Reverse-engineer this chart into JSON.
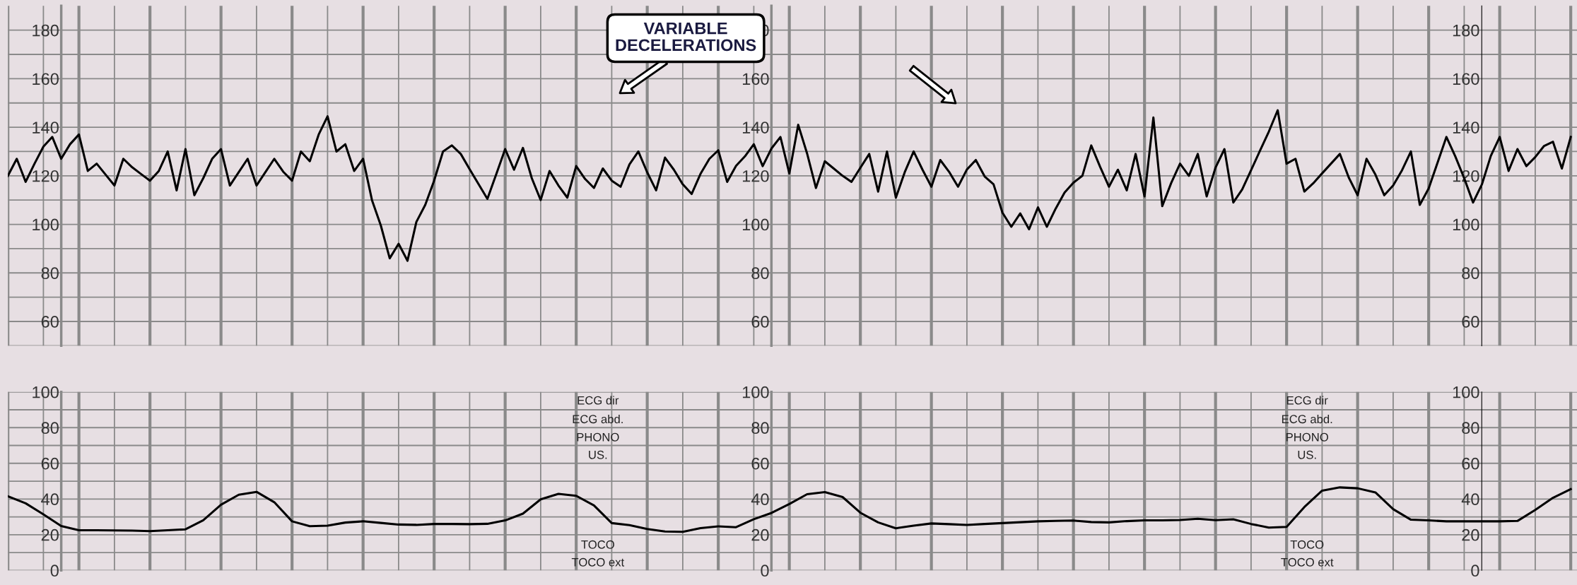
{
  "chart_data": [
    {
      "type": "line",
      "annotations": [
        "VARIABLE\nDECELERATIONS"
      ],
      "tick_labels": "y",
      "grid": true,
      "ylim": [
        50,
        190
      ],
      "y2lim": [
        50,
        190
      ],
      "y3lim": [
        50,
        190
      ],
      "y3ticks": [
        {
          "value": 50,
          "label": null
        },
        60,
        {
          "value": 70,
          "label": null
        },
        80,
        {
          "value": 90,
          "label": null
        },
        100,
        {
          "value": 110,
          "label": null
        },
        120,
        {
          "value": 130,
          "label": null
        },
        140,
        {
          "value": 150,
          "label": null
        },
        160,
        {
          "value": 170,
          "label": null
        },
        180
      ],
      "y2ticks": [
        {
          "value": 50,
          "label": null
        },
        60,
        {
          "value": 70,
          "label": null
        },
        80,
        {
          "value": 90,
          "label": null
        },
        100,
        {
          "value": 110,
          "label": null
        },
        120,
        {
          "value": 130,
          "label": null
        },
        140,
        {
          "value": 150,
          "label": null
        },
        160,
        {
          "value": 170,
          "label": null
        },
        180
      ],
      "yticks": [
        {
          "value": 50,
          "label": null
        },
        60,
        {
          "value": 70,
          "label": null
        },
        80,
        {
          "value": 90,
          "label": null
        },
        100,
        {
          "value": 110,
          "label": null
        },
        120,
        {
          "value": 130,
          "label": null
        },
        140,
        {
          "value": 150,
          "label": null
        },
        160,
        {
          "value": 170,
          "label": null
        },
        180
      ],
      "categories": [
        null,
        null,
        null,
        null,
        null,
        null,
        null,
        null,
        null,
        null,
        null,
        null,
        null,
        null,
        null,
        null,
        null,
        null,
        null,
        null,
        null,
        null,
        null,
        null,
        null,
        null,
        null,
        null,
        null,
        null,
        null,
        null,
        null,
        null,
        null,
        null,
        null,
        null,
        null,
        null,
        null,
        null,
        null,
        null,
        null,
        null,
        null,
        null,
        null,
        null,
        null,
        null,
        null,
        null,
        null,
        null,
        null,
        null,
        null,
        null,
        null,
        null,
        null,
        null,
        null,
        null,
        null,
        null,
        null,
        null,
        null,
        null,
        null,
        null,
        null,
        null,
        null,
        null,
        null,
        null,
        null,
        null,
        null,
        null,
        null,
        null,
        null,
        null,
        null,
        null,
        null,
        null,
        null,
        null,
        null,
        null,
        null,
        null,
        null,
        null,
        null,
        null,
        null,
        null,
        null,
        null,
        null,
        null,
        null,
        null,
        null,
        null,
        null,
        null,
        null,
        null,
        null,
        null,
        null,
        null,
        null,
        null,
        null,
        null,
        null,
        null,
        null,
        null,
        null,
        null,
        null,
        null,
        null,
        null,
        null,
        null,
        null,
        null,
        null,
        null,
        null,
        null,
        null,
        null,
        null,
        null,
        null,
        null,
        null,
        null,
        null,
        null,
        null,
        null,
        null,
        null,
        null,
        null,
        null,
        null,
        null,
        null,
        null,
        null,
        null,
        null,
        null,
        null,
        null,
        null,
        null,
        null,
        null,
        null,
        null,
        null,
        null
      ],
      "series": [
        {
          "color": "#000000",
          "values": [
            120,
            127,
            117.5,
            125,
            132,
            136,
            127,
            133,
            137,
            122,
            125,
            120.5,
            116,
            127,
            123.5,
            120.7,
            118,
            122,
            130,
            114,
            131,
            112,
            119,
            127,
            131,
            116,
            121.5,
            127,
            116,
            121.5,
            127,
            121.7,
            118,
            130,
            126,
            137,
            144.5,
            130,
            133,
            122,
            127,
            110,
            99.5,
            86,
            92,
            85,
            101,
            108,
            118,
            130,
            132.5,
            129,
            122.7,
            116.6,
            110.5,
            120.7,
            131,
            122.5,
            131.5,
            119,
            110,
            122,
            116,
            111,
            124,
            118.7,
            115,
            123,
            118,
            115.5,
            124.7,
            130,
            121.4,
            114,
            127.5,
            122.5,
            116.5,
            112.5,
            120.8,
            127,
            130.5,
            117.5,
            124.1,
            128,
            133,
            124,
            131.3,
            136,
            121,
            141,
            129.2,
            115,
            126,
            123,
            120,
            117.5,
            123.3,
            129,
            113.5,
            130,
            111,
            121.5,
            130,
            122.5,
            115.5,
            126.5,
            121.6,
            115.5,
            122.6,
            126.5,
            119.7,
            116.5,
            104.8,
            99,
            104.5,
            98,
            107,
            99,
            106.5,
            113.1,
            117.2,
            120,
            132.5,
            123.7,
            115.5,
            122.5,
            114,
            129,
            111.5,
            144,
            107.5,
            117,
            125,
            120,
            129,
            111.5,
            123.4,
            131,
            109,
            114.4,
            122.3,
            130.3,
            138.2,
            147,
            125,
            127,
            113.5,
            116.9,
            121,
            125,
            129,
            119.3,
            112,
            127,
            120.5,
            112,
            116,
            122.3,
            130,
            108,
            114.8,
            125.4,
            136,
            128,
            119,
            109,
            116.5,
            128.2,
            136,
            122,
            131,
            124,
            127.7,
            132.3,
            134,
            123,
            136
          ]
        }
      ]
    },
    {
      "type": "line",
      "annotations": [
        "ECG dir",
        "ECG abd.",
        "PHONO",
        "US.",
        "TOCO",
        "TOCO ext",
        "ECG dir",
        "ECG abd.",
        "PHONO",
        "US.",
        "TOCO",
        "TOCO ext"
      ],
      "tick_labels": "y",
      "grid": true,
      "ylim": [
        0,
        100
      ],
      "y2lim": [
        0,
        100
      ],
      "y3lim": [
        0,
        100
      ],
      "y3ticks": [
        0,
        {
          "value": 10,
          "label": null
        },
        20,
        {
          "value": 30,
          "label": null
        },
        40,
        {
          "value": 50,
          "label": null
        },
        60,
        {
          "value": 70,
          "label": null
        },
        80,
        {
          "value": 90,
          "label": null
        },
        100
      ],
      "y2ticks": [
        0,
        {
          "value": 10,
          "label": null
        },
        20,
        {
          "value": 30,
          "label": null
        },
        40,
        {
          "value": 50,
          "label": null
        },
        60,
        {
          "value": 70,
          "label": null
        },
        80,
        {
          "value": 90,
          "label": null
        },
        100
      ],
      "yticks": [
        0,
        {
          "value": 10,
          "label": null
        },
        20,
        {
          "value": 30,
          "label": null
        },
        40,
        {
          "value": 50,
          "label": null
        },
        60,
        {
          "value": 70,
          "label": null
        },
        80,
        {
          "value": 90,
          "label": null
        },
        100
      ],
      "categories": [
        null,
        null,
        null,
        null,
        null,
        null,
        null,
        null,
        null,
        null,
        null,
        null,
        null,
        null,
        null,
        null,
        null,
        null,
        null,
        null,
        null,
        null,
        null,
        null,
        null,
        null,
        null,
        null,
        null,
        null,
        null,
        null,
        null,
        null,
        null,
        null,
        null,
        null,
        null,
        null,
        null,
        null,
        null,
        null,
        null,
        null,
        null,
        null,
        null,
        null,
        null,
        null,
        null,
        null,
        null,
        null,
        null,
        null,
        null,
        null,
        null,
        null,
        null,
        null,
        null,
        null,
        null,
        null,
        null,
        null,
        null,
        null,
        null,
        null,
        null,
        null,
        null,
        null,
        null,
        null,
        null,
        null,
        null,
        null,
        null,
        null,
        null,
        null,
        null
      ],
      "series": [
        {
          "color": "#000000",
          "values": [
            41.5,
            37.6,
            31.4,
            24.9,
            22.5,
            22.5,
            22.4,
            22.3,
            22,
            22.5,
            23,
            28.1,
            36.8,
            42.4,
            44,
            38.2,
            27.5,
            24.8,
            25.1,
            26.8,
            27.5,
            26.6,
            25.7,
            25.5,
            26,
            26,
            25.9,
            26.1,
            28,
            31.8,
            39.8,
            42.9,
            41.8,
            36.4,
            26.5,
            25.4,
            23.2,
            21.8,
            21.6,
            23.7,
            24.7,
            24.2,
            28.7,
            32.2,
            37.2,
            42.7,
            43.9,
            41.1,
            32.3,
            26.9,
            23.6,
            25.1,
            26.3,
            25.9,
            25.5,
            26,
            26.5,
            27,
            27.5,
            27.7,
            27.9,
            27.1,
            26.9,
            27.6,
            28,
            28,
            28.2,
            28.9,
            28.1,
            28.6,
            26,
            24,
            24.4,
            35.5,
            44.7,
            46.5,
            46,
            43.7,
            34.3,
            28.4,
            28,
            27.5,
            27.5,
            27.5,
            27.5,
            27.7,
            33.9,
            40.7,
            45.5
          ]
        }
      ]
    }
  ]
}
